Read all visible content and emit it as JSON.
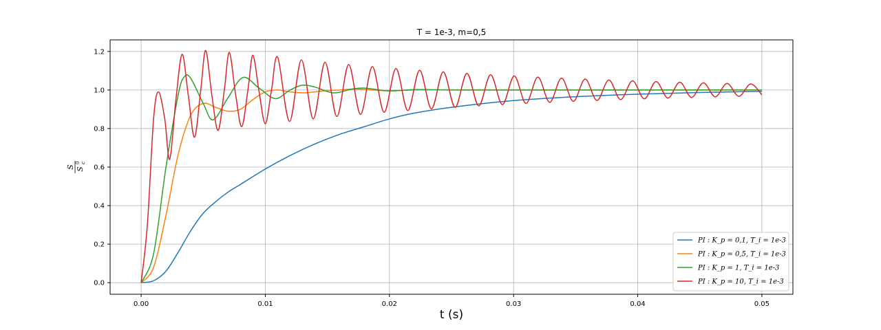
{
  "chart_data": {
    "type": "line",
    "title": "T = 1e-3, m=0,5",
    "xlabel": "t (s)",
    "ylabel": "S / S_c^0",
    "xlim": [
      -0.0025,
      0.0525
    ],
    "ylim": [
      -0.06,
      1.26
    ],
    "xticks": [
      0.0,
      0.01,
      0.02,
      0.03,
      0.04,
      0.05
    ],
    "xtick_labels": [
      "0.00",
      "0.01",
      "0.02",
      "0.03",
      "0.04",
      "0.05"
    ],
    "yticks": [
      0.0,
      0.2,
      0.4,
      0.6,
      0.8,
      1.0,
      1.2
    ],
    "ytick_labels": [
      "0.0",
      "0.2",
      "0.4",
      "0.6",
      "0.8",
      "1.0",
      "1.2"
    ],
    "grid": true,
    "legend_position": "lower-right",
    "series": [
      {
        "name": "PI : K_p = 0,1, T_i = 1e-3",
        "color": "#1f77b4",
        "x": [
          0,
          0.001,
          0.002,
          0.003,
          0.004,
          0.005,
          0.006,
          0.007,
          0.008,
          0.01,
          0.012,
          0.014,
          0.016,
          0.018,
          0.02,
          0.022,
          0.025,
          0.03,
          0.035,
          0.04,
          0.045,
          0.05
        ],
        "y": [
          0,
          0.01,
          0.06,
          0.16,
          0.27,
          0.36,
          0.42,
          0.47,
          0.51,
          0.59,
          0.66,
          0.72,
          0.77,
          0.81,
          0.85,
          0.88,
          0.91,
          0.945,
          0.965,
          0.978,
          0.987,
          0.993
        ]
      },
      {
        "name": "PI : K_p = 0,5, T_i = 1e-3",
        "color": "#ff7f0e",
        "x": [
          0,
          0.001,
          0.002,
          0.003,
          0.004,
          0.005,
          0.006,
          0.007,
          0.008,
          0.009,
          0.01,
          0.011,
          0.012,
          0.013,
          0.014,
          0.015,
          0.016,
          0.017,
          0.018,
          0.019,
          0.02,
          0.022,
          0.024,
          0.026,
          0.03,
          0.035,
          0.04,
          0.045,
          0.05
        ],
        "y": [
          0,
          0.08,
          0.35,
          0.67,
          0.87,
          0.93,
          0.91,
          0.89,
          0.9,
          0.95,
          0.99,
          1.0,
          0.99,
          0.985,
          0.99,
          0.997,
          1.0,
          1.005,
          1.003,
          0.998,
          0.996,
          1.0,
          1.001,
          1.0,
          1.0,
          1.0,
          1.0,
          1.0,
          1.0
        ]
      },
      {
        "name": "PI : K_p = 1, T_i = 1e-3",
        "color": "#2ca02c",
        "x": [
          0,
          0.001,
          0.002,
          0.003,
          0.0035,
          0.004,
          0.005,
          0.0058,
          0.007,
          0.0082,
          0.0095,
          0.0108,
          0.012,
          0.013,
          0.014,
          0.0155,
          0.017,
          0.018,
          0.02,
          0.022,
          0.025,
          0.03,
          0.035,
          0.04,
          0.045,
          0.05
        ],
        "y": [
          0,
          0.15,
          0.6,
          0.98,
          1.07,
          1.06,
          0.93,
          0.845,
          0.96,
          1.065,
          1.01,
          0.955,
          1.0,
          1.025,
          1.015,
          0.985,
          1.005,
          1.01,
          0.995,
          1.002,
          1.0,
          1.0,
          1.0,
          1.0,
          1.0,
          1.0
        ]
      },
      {
        "name": "PI : K_p = 10, T_i = 1e-3",
        "color": "#d62728",
        "x": [
          0,
          0.0005,
          0.001,
          0.0014,
          0.0019,
          0.0023,
          0.0028,
          0.0033,
          0.0038,
          0.0043,
          0.0048,
          0.0052,
          0.0057,
          0.0062,
          0.0067,
          0.0071,
          0.0076,
          0.0081,
          0.0086,
          0.009,
          0.0095,
          0.01,
          0.0105,
          0.011
        ],
        "y": [
          0,
          0.3,
          0.85,
          0.99,
          0.85,
          0.64,
          0.95,
          1.185,
          0.97,
          0.755,
          1.0,
          1.205,
          0.97,
          0.79,
          1.0,
          1.195,
          0.98,
          0.81,
          1.0,
          1.18,
          0.99,
          0.825,
          1.0,
          1.17
        ],
        "osc": {
          "t0": 0.011,
          "t1": 0.05,
          "period": 0.001905,
          "center": 1.0,
          "amp_start": 0.17,
          "amp_end": 0.03,
          "end_value": 0.975
        }
      }
    ]
  }
}
